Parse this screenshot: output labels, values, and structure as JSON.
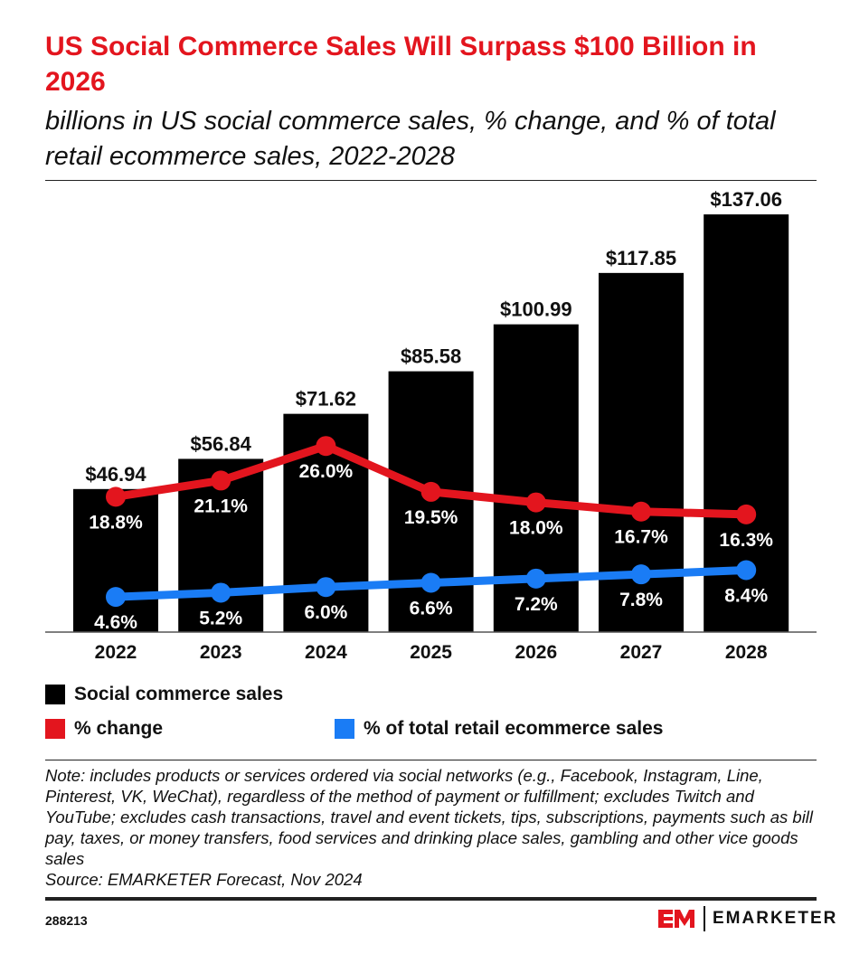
{
  "title": "US Social Commerce Sales Will Surpass $100 Billion in 2026",
  "subtitle": "billions in US social commerce sales, % change, and % of total retail ecommerce sales, 2022-2028",
  "chart_data": {
    "type": "bar",
    "categories": [
      "2022",
      "2023",
      "2024",
      "2025",
      "2026",
      "2027",
      "2028"
    ],
    "series": [
      {
        "name": "Social commerce sales",
        "type": "bar",
        "color": "#000000",
        "values": [
          46.94,
          56.84,
          71.62,
          85.58,
          100.99,
          117.85,
          137.06
        ],
        "labels": [
          "$46.94",
          "$56.84",
          "$71.62",
          "$85.58",
          "$100.99",
          "$117.85",
          "$137.06"
        ]
      },
      {
        "name": "% change",
        "type": "line",
        "color": "#e3151e",
        "values": [
          18.8,
          21.1,
          26.0,
          19.5,
          18.0,
          16.7,
          16.3
        ],
        "labels": [
          "18.8%",
          "21.1%",
          "26.0%",
          "19.5%",
          "18.0%",
          "16.7%",
          "16.3%"
        ]
      },
      {
        "name": "% of total retail ecommerce sales",
        "type": "line",
        "color": "#1a7cf5",
        "values": [
          4.6,
          5.2,
          6.0,
          6.6,
          7.2,
          7.8,
          8.4
        ],
        "labels": [
          "4.6%",
          "5.2%",
          "6.0%",
          "6.6%",
          "7.2%",
          "7.8%",
          "8.4%"
        ]
      }
    ],
    "legend": "bottom",
    "grid": false
  },
  "note": "Note: includes products or services ordered via social networks (e.g., Facebook, Instagram, Line, Pinterest, VK, WeChat), regardless of the method of payment or fulfillment; excludes Twitch and YouTube; excludes cash transactions, travel and event tickets, tips, subscriptions, payments such as bill pay, taxes, or money transfers, food services and drinking place sales, gambling and other vice goods sales",
  "source": "Source: EMARKETER Forecast, Nov 2024",
  "chart_id": "288213",
  "brand": "EMARKETER"
}
